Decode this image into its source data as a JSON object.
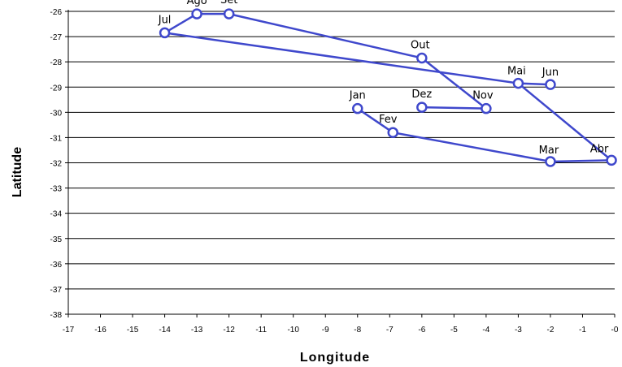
{
  "chart_data": {
    "type": "scatter",
    "xlabel": "Longitude",
    "ylabel": "Latitude",
    "xlim": [
      -17,
      0
    ],
    "ylim": [
      -38,
      -26
    ],
    "x_ticks": [
      "-17",
      "-16",
      "-15",
      "-14",
      "-13",
      "-12",
      "-11",
      "-10",
      "-9",
      "-8",
      "-7",
      "-6",
      "-5",
      "-4",
      "-3",
      "-2",
      "-1",
      "-0"
    ],
    "y_ticks": [
      "-26",
      "-27",
      "-28",
      "-29",
      "-30",
      "-31",
      "-32",
      "-33",
      "-34",
      "-35",
      "-36",
      "-37",
      "-38"
    ],
    "grid": "horizontal",
    "colors": {
      "series": "#3f48cc"
    },
    "points": [
      {
        "label": "Jan",
        "x": -8.0,
        "y": -29.85
      },
      {
        "label": "Fev",
        "x": -6.9,
        "y": -30.8
      },
      {
        "label": "Mar",
        "x": -2.0,
        "y": -31.95
      },
      {
        "label": "Abr",
        "x": -0.1,
        "y": -31.9
      },
      {
        "label": "Mai",
        "x": -3.0,
        "y": -28.85
      },
      {
        "label": "Jun",
        "x": -2.0,
        "y": -28.9
      },
      {
        "label": "Jul",
        "x": -14.0,
        "y": -26.85
      },
      {
        "label": "Ago",
        "x": -13.0,
        "y": -26.1
      },
      {
        "label": "Set",
        "x": -12.0,
        "y": -26.1
      },
      {
        "label": "Out",
        "x": -6.0,
        "y": -27.85
      },
      {
        "label": "Nov",
        "x": -4.0,
        "y": -29.85
      },
      {
        "label": "Dez",
        "x": -6.0,
        "y": -29.8
      }
    ],
    "path_order": [
      "Jan",
      "Fev",
      "Mar",
      "Abr",
      "Mai",
      "Jul",
      "Ago",
      "Set",
      "Out",
      "Nov",
      "Dez"
    ],
    "separate_segments": [
      [
        "Mai",
        "Jun"
      ]
    ]
  }
}
